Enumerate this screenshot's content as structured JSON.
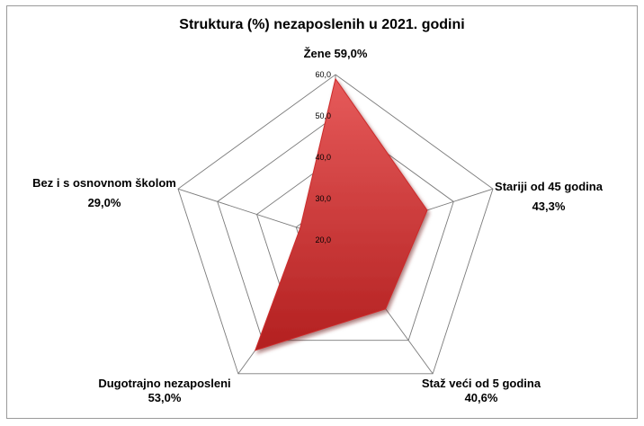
{
  "chart_data": {
    "type": "radar",
    "title": "Struktura (%) nezaposlenih u 2021. godini",
    "categories": [
      "Žene",
      "Stariji od 45 godina",
      "Staž veći od 5 godina",
      "Dugotrajno nezaposleni",
      "Bez i s osnovnom školom"
    ],
    "values": [
      59.0,
      43.3,
      40.6,
      53.0,
      29.0
    ],
    "value_labels": [
      "59,0%",
      "43,3%",
      "40,6%",
      "53,0%",
      "29,0%"
    ],
    "rlim": [
      20,
      60
    ],
    "ticks": [
      "20,0",
      "30,0",
      "40,0",
      "50,0",
      "60,0"
    ],
    "series_color": "#cc2a2a",
    "grid": true,
    "legend": "none"
  }
}
